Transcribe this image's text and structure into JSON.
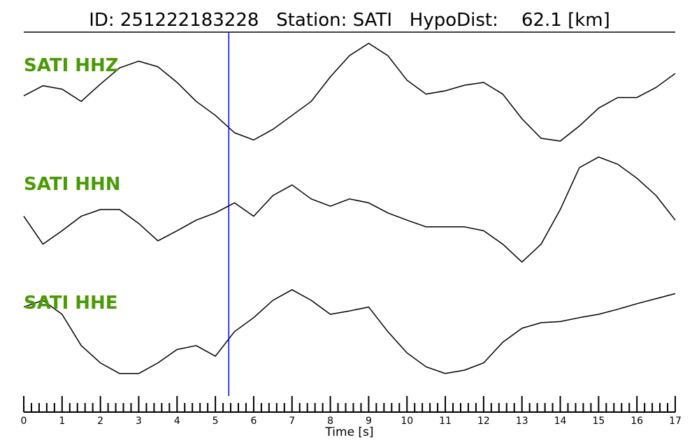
{
  "chart_data": {
    "type": "line",
    "title": "ID: 251222183228   Station: SATI   HypoDist:    62.1 [km]",
    "xlabel": "Time [s]",
    "x": [
      0,
      0.5,
      1,
      1.5,
      2,
      2.5,
      3,
      3.5,
      4,
      4.5,
      5,
      5.5,
      6,
      6.5,
      7,
      7.5,
      8,
      8.5,
      9,
      9.5,
      10,
      10.5,
      11,
      11.5,
      12,
      12.5,
      13,
      13.5,
      14,
      14.5,
      15,
      15.5,
      16,
      16.5,
      17
    ],
    "series": [
      {
        "name": "SATI HHZ",
        "color": "#000000",
        "values": [
          -0.09,
          0.09,
          0.03,
          -0.19,
          0.12,
          0.41,
          0.53,
          0.43,
          0.15,
          -0.19,
          -0.44,
          -0.75,
          -0.88,
          -0.69,
          -0.44,
          -0.19,
          0.25,
          0.63,
          0.85,
          0.63,
          0.19,
          -0.06,
          0.0,
          0.1,
          0.15,
          -0.06,
          -0.5,
          -0.85,
          -0.9,
          -0.63,
          -0.31,
          -0.12,
          -0.12,
          0.06,
          0.31
        ]
      },
      {
        "name": "SATI HHN",
        "color": "#000000",
        "values": [
          -0.12,
          -0.62,
          -0.38,
          -0.12,
          0,
          0,
          -0.25,
          -0.56,
          -0.38,
          -0.19,
          -0.06,
          0.12,
          -0.12,
          0.25,
          0.44,
          0.19,
          0.06,
          0.19,
          0.12,
          -0.06,
          -0.19,
          -0.31,
          -0.31,
          -0.31,
          -0.38,
          -0.62,
          -0.94,
          -0.62,
          0,
          0.75,
          0.94,
          0.81,
          0.56,
          0.25,
          -0.19
        ]
      },
      {
        "name": "SATI HHE",
        "color": "#000000",
        "values": [
          0.38,
          0.5,
          0.25,
          -0.31,
          -0.62,
          -0.81,
          -0.81,
          -0.62,
          -0.38,
          -0.31,
          -0.5,
          -0.06,
          0.19,
          0.5,
          0.69,
          0.5,
          0.25,
          0.31,
          0.38,
          -0.06,
          -0.44,
          -0.69,
          -0.81,
          -0.75,
          -0.62,
          -0.25,
          0,
          0.1,
          0.12,
          0.19,
          0.25,
          0.34,
          0.44,
          0.53,
          0.62
        ]
      }
    ],
    "label_color": "#4a9a06",
    "pick_time": 5.35,
    "pick_color": "#0000ff",
    "xlim": [
      0,
      17
    ],
    "ylim": [
      -1,
      1
    ],
    "xticks": [
      0,
      1,
      2,
      3,
      4,
      5,
      6,
      7,
      8,
      9,
      10,
      11,
      12,
      13,
      14,
      15,
      16,
      17
    ],
    "minor_xticks": [
      0.2,
      0.4,
      0.6,
      0.8,
      1.2,
      1.4,
      1.6,
      1.8,
      2.2,
      2.4,
      2.6,
      2.8,
      3.2,
      3.4,
      3.6,
      3.8,
      4.2,
      4.4,
      4.6,
      4.8,
      5.2,
      5.4,
      5.6,
      5.8,
      6.2,
      6.4,
      6.6,
      6.8,
      7.2,
      7.4,
      7.6,
      7.8,
      8.2,
      8.4,
      8.6,
      8.8,
      9.2,
      9.4,
      9.6,
      9.8,
      10.2,
      10.4,
      10.6,
      10.8,
      11.2,
      11.4,
      11.6,
      11.8,
      12.2,
      12.4,
      12.6,
      12.8,
      13.2,
      13.4,
      13.6,
      13.8,
      14.2,
      14.4,
      14.6,
      14.8,
      15.2,
      15.4,
      15.6,
      15.8,
      16.2,
      16.4,
      16.6,
      16.8
    ]
  }
}
